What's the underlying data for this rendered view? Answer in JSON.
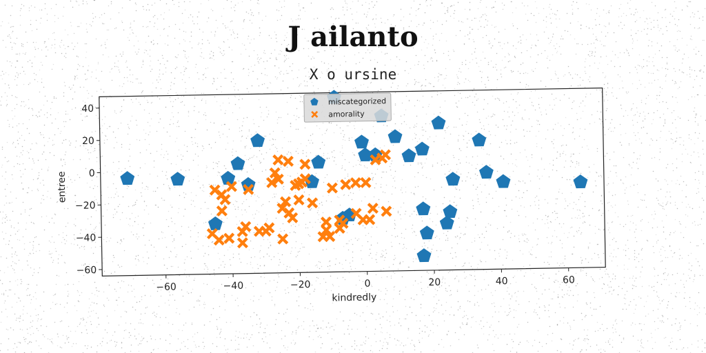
{
  "title": "J ailanto",
  "subtitle": "X o ursine",
  "chart_data": {
    "type": "scatter",
    "xlabel": "kindredly",
    "ylabel": "entree",
    "xlim": [
      -79,
      71
    ],
    "ylim": [
      -64,
      47
    ],
    "xticks": [
      -60,
      -40,
      -20,
      0,
      20,
      40,
      60
    ],
    "yticks": [
      -60,
      -40,
      -20,
      0,
      20,
      40
    ],
    "xtick_labels": [
      "−60",
      "−40",
      "−20",
      "0",
      "20",
      "40",
      "60"
    ],
    "ytick_labels": [
      "−60",
      "−40",
      "−20",
      "0",
      "20",
      "40"
    ],
    "grid": false,
    "legend_position": "top-center",
    "series": [
      {
        "name": "miscategorized",
        "marker": "pentagon",
        "color": "#1f77b4",
        "points": [
          [
            -71,
            -4
          ],
          [
            -56,
            -5
          ],
          [
            -45,
            -33
          ],
          [
            -41,
            -5
          ],
          [
            -38,
            4
          ],
          [
            -35,
            -9
          ],
          [
            -32,
            18
          ],
          [
            -16,
            -8
          ],
          [
            -14,
            4
          ],
          [
            -9,
            44
          ],
          [
            -7,
            -31
          ],
          [
            -5,
            -29
          ],
          [
            -1,
            16
          ],
          [
            0,
            8
          ],
          [
            3,
            8
          ],
          [
            5,
            32
          ],
          [
            9,
            19
          ],
          [
            13,
            7
          ],
          [
            17,
            11
          ],
          [
            17,
            -26
          ],
          [
            18,
            -41
          ],
          [
            17,
            -55
          ],
          [
            22,
            27
          ],
          [
            24,
            -35
          ],
          [
            25,
            -28
          ],
          [
            26,
            -8
          ],
          [
            34,
            16
          ],
          [
            36,
            -4
          ],
          [
            41,
            -10
          ],
          [
            64,
            -11
          ]
        ]
      },
      {
        "name": "amorality",
        "marker": "x",
        "color": "#ff7f0e",
        "points": [
          [
            -46,
            -39
          ],
          [
            -45,
            -12
          ],
          [
            -44,
            -43
          ],
          [
            -43,
            -15
          ],
          [
            -43,
            -25
          ],
          [
            -42,
            -18
          ],
          [
            -41,
            -42
          ],
          [
            -40,
            -10
          ],
          [
            -37,
            -45
          ],
          [
            -37,
            -38
          ],
          [
            -36,
            -35
          ],
          [
            -35,
            -12
          ],
          [
            -32,
            -38
          ],
          [
            -30,
            -38
          ],
          [
            -29,
            -36
          ],
          [
            -28,
            -8
          ],
          [
            -27,
            -2
          ],
          [
            -26,
            6
          ],
          [
            -26,
            -6
          ],
          [
            -25,
            -43
          ],
          [
            -25,
            -24
          ],
          [
            -24,
            -20
          ],
          [
            -23,
            5
          ],
          [
            -23,
            -27
          ],
          [
            -22,
            -30
          ],
          [
            -21,
            -10
          ],
          [
            -20,
            -9
          ],
          [
            -20,
            -19
          ],
          [
            -19,
            -8
          ],
          [
            -18,
            3
          ],
          [
            -18,
            -6
          ],
          [
            -16,
            -21
          ],
          [
            -13,
            -42
          ],
          [
            -12,
            -38
          ],
          [
            -12,
            -33
          ],
          [
            -11,
            -42
          ],
          [
            -10,
            -12
          ],
          [
            -8,
            -32
          ],
          [
            -8,
            -37
          ],
          [
            -7,
            -34
          ],
          [
            -6,
            -10
          ],
          [
            -3,
            -9
          ],
          [
            -3,
            -28
          ],
          [
            -1,
            -32
          ],
          [
            0,
            -9
          ],
          [
            1,
            -32
          ],
          [
            2,
            -25
          ],
          [
            3,
            5
          ],
          [
            5,
            6
          ],
          [
            6,
            8
          ],
          [
            6,
            -27
          ]
        ]
      }
    ]
  }
}
